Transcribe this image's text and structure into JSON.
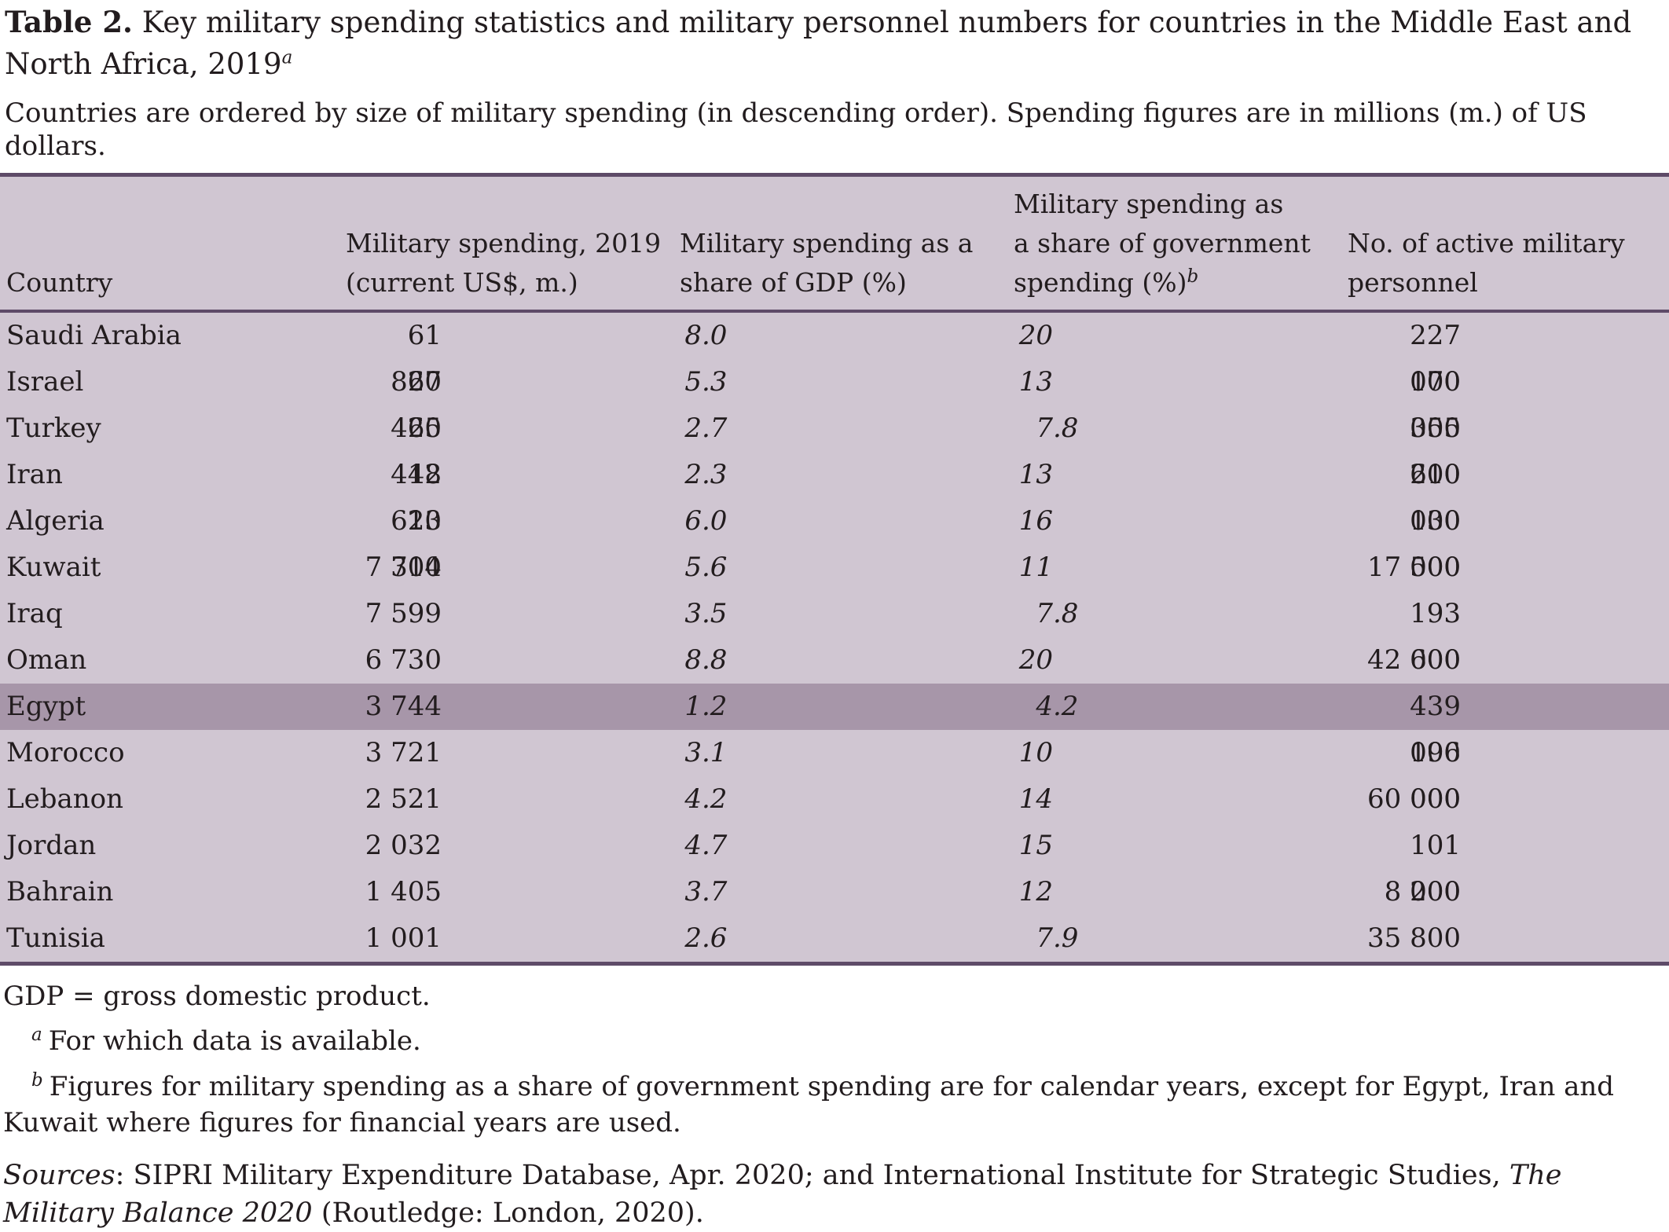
{
  "title": {
    "label": "Table 2.",
    "text": " Key military spending statistics and military personnel numbers for countries in the Middle East and North Africa, 2019",
    "marker": "a"
  },
  "subtitle": "Countries are ordered by size of military spending (in descending order). Spending figures are in millions (m.) of US dollars.",
  "table": {
    "columns": [
      {
        "id": "country",
        "lines": [
          "Country"
        ]
      },
      {
        "id": "spending",
        "lines": [
          "Military spending, 2019",
          "(current US$, m.)"
        ]
      },
      {
        "id": "gdp-share",
        "lines": [
          "Military spending as a",
          "share of GDP (%)"
        ]
      },
      {
        "id": "gov-share",
        "lines": [
          "Military spending as",
          "a share of government",
          "spending (%)"
        ],
        "marker": "b"
      },
      {
        "id": "personnel",
        "lines": [
          "No. of active military",
          "personnel"
        ]
      }
    ],
    "rows": [
      {
        "country": "Saudi Arabia",
        "spending": "61 867",
        "gdp_share": "8.0",
        "gov_share": "20",
        "personnel": "227 000",
        "highlight": false
      },
      {
        "country": "Israel",
        "spending": "20 465",
        "gdp_share": "5.3",
        "gov_share": "13",
        "personnel": "170 000",
        "highlight": false
      },
      {
        "country": "Turkey",
        "spending": "20 448",
        "gdp_share": "2.7",
        "gov_share": "7.8",
        "personnel": "355 200",
        "highlight": false
      },
      {
        "country": "Iran",
        "spending": "12 623",
        "gdp_share": "2.3",
        "gov_share": "13",
        "personnel": "610 000",
        "highlight": false
      },
      {
        "country": "Algeria",
        "spending": "10 304",
        "gdp_share": "6.0",
        "gov_share": "16",
        "personnel": "130 000",
        "highlight": false
      },
      {
        "country": "Kuwait",
        "spending": "7 710",
        "gdp_share": "5.6",
        "gov_share": "11",
        "personnel": "17 500",
        "highlight": false
      },
      {
        "country": "Iraq",
        "spending": "7 599",
        "gdp_share": "3.5",
        "gov_share": "7.8",
        "personnel": "193 000",
        "highlight": false
      },
      {
        "country": "Oman",
        "spending": "6 730",
        "gdp_share": "8.8",
        "gov_share": "20",
        "personnel": "42 600",
        "highlight": false
      },
      {
        "country": "Egypt",
        "spending": "3 744",
        "gdp_share": "1.2",
        "gov_share": "4.2",
        "personnel": "439 000",
        "highlight": true
      },
      {
        "country": "Morocco",
        "spending": "3 721",
        "gdp_share": "3.1",
        "gov_share": "10",
        "personnel": "196 000",
        "highlight": false
      },
      {
        "country": "Lebanon",
        "spending": "2 521",
        "gdp_share": "4.2",
        "gov_share": "14",
        "personnel": "60 000",
        "highlight": false
      },
      {
        "country": "Jordan",
        "spending": "2 032",
        "gdp_share": "4.7",
        "gov_share": "15",
        "personnel": "101 000",
        "highlight": false
      },
      {
        "country": "Bahrain",
        "spending": "1 405",
        "gdp_share": "3.7",
        "gov_share": "12",
        "personnel": "8 200",
        "highlight": false
      },
      {
        "country": "Tunisia",
        "spending": "1 001",
        "gdp_share": "2.6",
        "gov_share": "7.9",
        "personnel": "35 800",
        "highlight": false
      }
    ]
  },
  "footnotes": {
    "gdp_note": "GDP = gross domestic product.",
    "a": {
      "marker": "a",
      "text": "For which data is available."
    },
    "b": {
      "marker": "b",
      "text": "Figures for military spending as a share of government spending are for calendar years, except for Egypt, Iran and Kuwait where figures for financial years are used."
    }
  },
  "sources": {
    "label": "Sources",
    "text_1": ": SIPRI Military Expenditure Database, Apr. 2020; and International Institute for Strategic Studies, ",
    "title_italic": "The Military Balance 2020",
    "text_2": " (Routledge: London, 2020)."
  },
  "colors": {
    "table_background": "#d0c6d2",
    "highlight_row_background": "#a796a9",
    "rule": "#5e4b68",
    "text": "#221c1e",
    "page_background": "#ffffff"
  }
}
